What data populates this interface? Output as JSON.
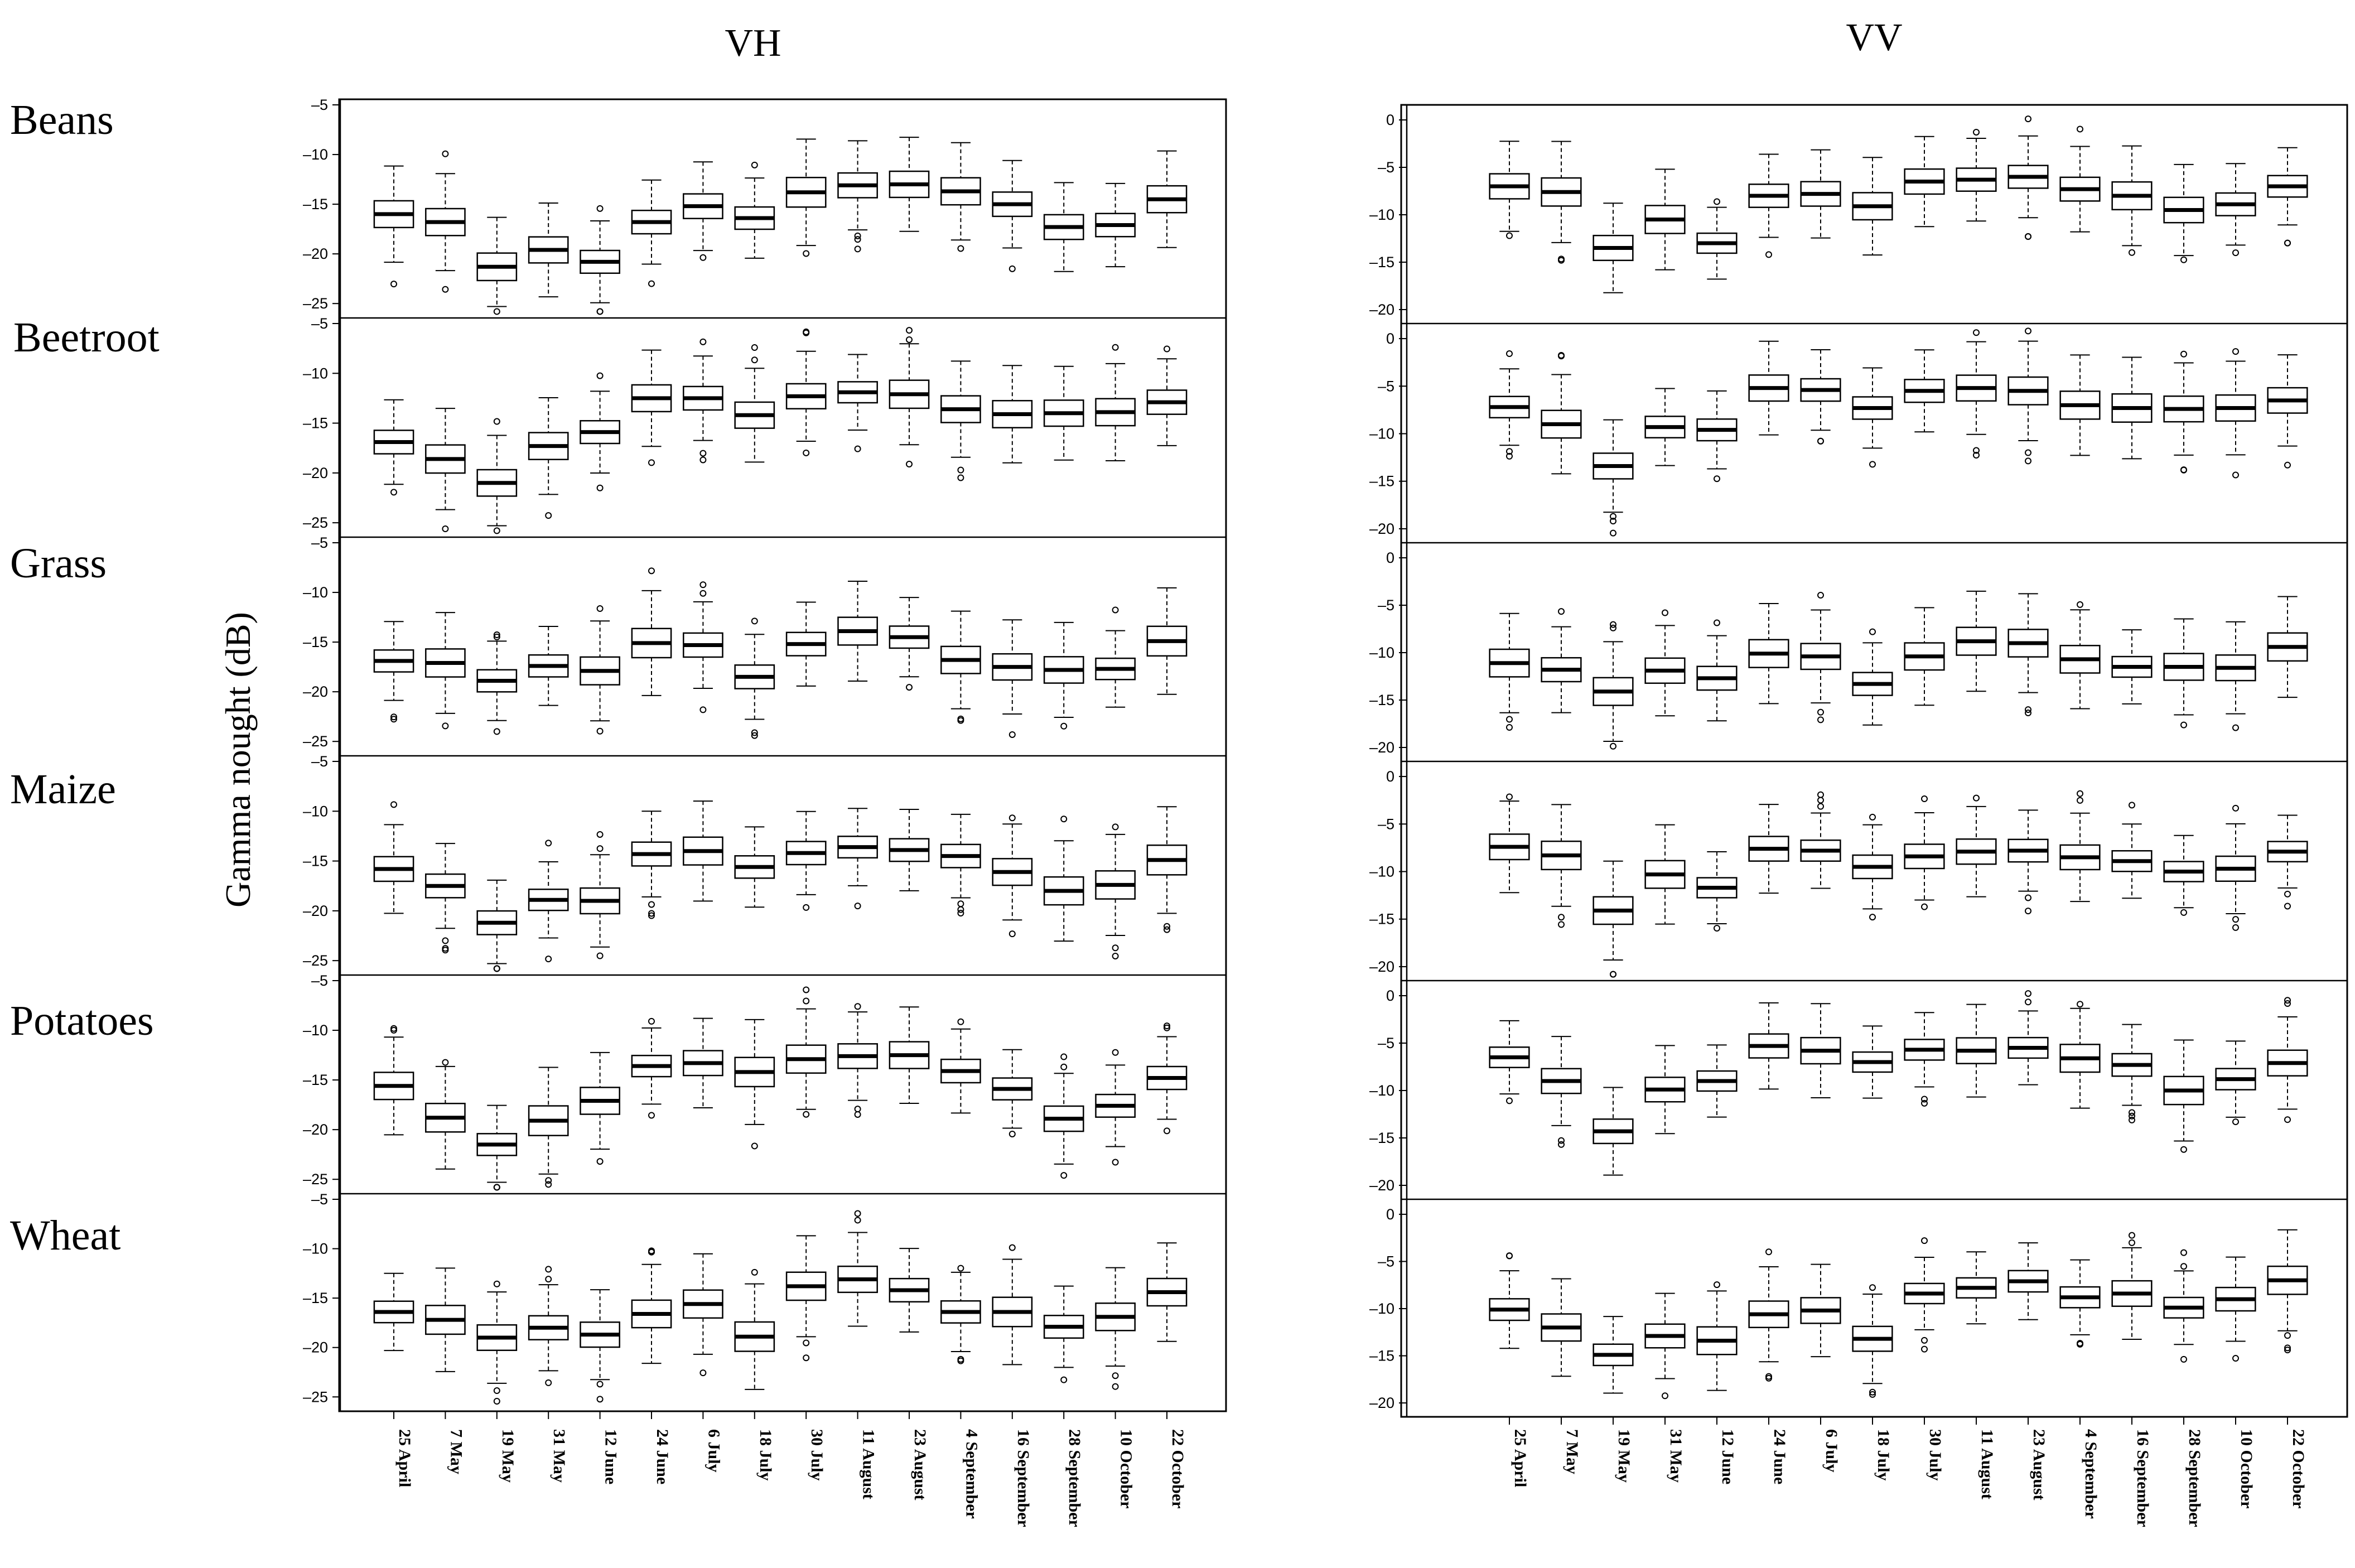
{
  "chart_data": {
    "type": "boxplot",
    "ylabel": "Gamma nought (dB)",
    "dates": [
      "25 April",
      "7 May",
      "19 May",
      "31 May",
      "12 June",
      "24 June",
      "6 July",
      "18 July",
      "30 July",
      "11 August",
      "23 August",
      "4 September",
      "16 September",
      "28 September",
      "10 October",
      "22 October"
    ],
    "crops": [
      "Beans",
      "Beetroot",
      "Grass",
      "Maize",
      "Potatoes",
      "Wheat"
    ],
    "polarizations": [
      {
        "name": "VH",
        "ylim": [
          -26,
          -5
        ],
        "yticks": [
          -5,
          -10,
          -15,
          -20,
          -25
        ],
        "medians": {
          "Beans": [
            -16,
            -16.8,
            -21.3,
            -19.6,
            -20.8,
            -16.8,
            -15.2,
            -16.4,
            -13.8,
            -13.1,
            -13.0,
            -13.7,
            -15.0,
            -17.3,
            -17.1,
            -14.5
          ],
          "Beetroot": [
            -16.9,
            -18.6,
            -21.0,
            -17.3,
            -15.9,
            -12.5,
            -12.5,
            -14.2,
            -12.3,
            -11.9,
            -12.1,
            -13.6,
            -14.1,
            -14.0,
            -13.9,
            -12.9
          ],
          "Grass": [
            -16.9,
            -17.1,
            -18.9,
            -17.4,
            -17.9,
            -15.1,
            -15.3,
            -18.5,
            -15.2,
            -13.9,
            -14.5,
            -16.8,
            -17.5,
            -17.8,
            -17.7,
            -14.9
          ],
          "Maize": [
            -15.8,
            -17.5,
            -21.2,
            -18.9,
            -19.0,
            -14.3,
            -14.0,
            -15.6,
            -14.2,
            -13.6,
            -13.9,
            -14.5,
            -16.1,
            -18.0,
            -17.4,
            -14.9
          ],
          "Potatoes": [
            -15.6,
            -18.8,
            -21.5,
            -19.1,
            -17.1,
            -13.6,
            -13.3,
            -14.2,
            -12.9,
            -12.6,
            -12.5,
            -14.1,
            -15.9,
            -18.9,
            -17.6,
            -14.8
          ],
          "Wheat": [
            -16.4,
            -17.2,
            -19.0,
            -18.0,
            -18.7,
            -16.6,
            -15.6,
            -18.9,
            -13.8,
            -13.1,
            -14.2,
            -16.4,
            -16.4,
            -17.9,
            -16.9,
            -14.4
          ]
        }
      },
      {
        "name": "VV",
        "ylim": [
          -21,
          1
        ],
        "yticks": [
          0,
          -5,
          -10,
          -15,
          -20
        ],
        "medians": {
          "Beans": [
            -7.0,
            -7.6,
            -13.5,
            -10.5,
            -13.0,
            -8.0,
            -7.8,
            -9.1,
            -6.5,
            -6.3,
            -6.0,
            -7.3,
            -8.0,
            -9.5,
            -8.9,
            -7.0
          ],
          "Beetroot": [
            -7.2,
            -9.0,
            -13.4,
            -9.3,
            -9.6,
            -5.2,
            -5.4,
            -7.3,
            -5.5,
            -5.2,
            -5.5,
            -7.0,
            -7.3,
            -7.4,
            -7.3,
            -6.5
          ],
          "Grass": [
            -11.1,
            -11.8,
            -14.1,
            -11.9,
            -12.7,
            -10.1,
            -10.4,
            -13.3,
            -10.4,
            -8.8,
            -9.0,
            -10.7,
            -11.5,
            -11.5,
            -11.6,
            -9.4
          ],
          "Maize": [
            -7.4,
            -8.3,
            -14.1,
            -10.3,
            -11.7,
            -7.6,
            -7.8,
            -9.5,
            -8.4,
            -7.9,
            -7.8,
            -8.5,
            -8.9,
            -10.0,
            -9.7,
            -7.9
          ],
          "Potatoes": [
            -6.5,
            -9.0,
            -14.3,
            -9.9,
            -9.0,
            -5.3,
            -5.8,
            -7.0,
            -5.7,
            -5.8,
            -5.5,
            -6.6,
            -7.3,
            -10.0,
            -8.8,
            -7.1
          ],
          "Wheat": [
            -10.1,
            -12.0,
            -14.9,
            -12.9,
            -13.4,
            -10.6,
            -10.2,
            -13.2,
            -8.4,
            -7.8,
            -7.1,
            -8.8,
            -8.4,
            -9.9,
            -9.0,
            -7.0
          ]
        }
      }
    ]
  }
}
